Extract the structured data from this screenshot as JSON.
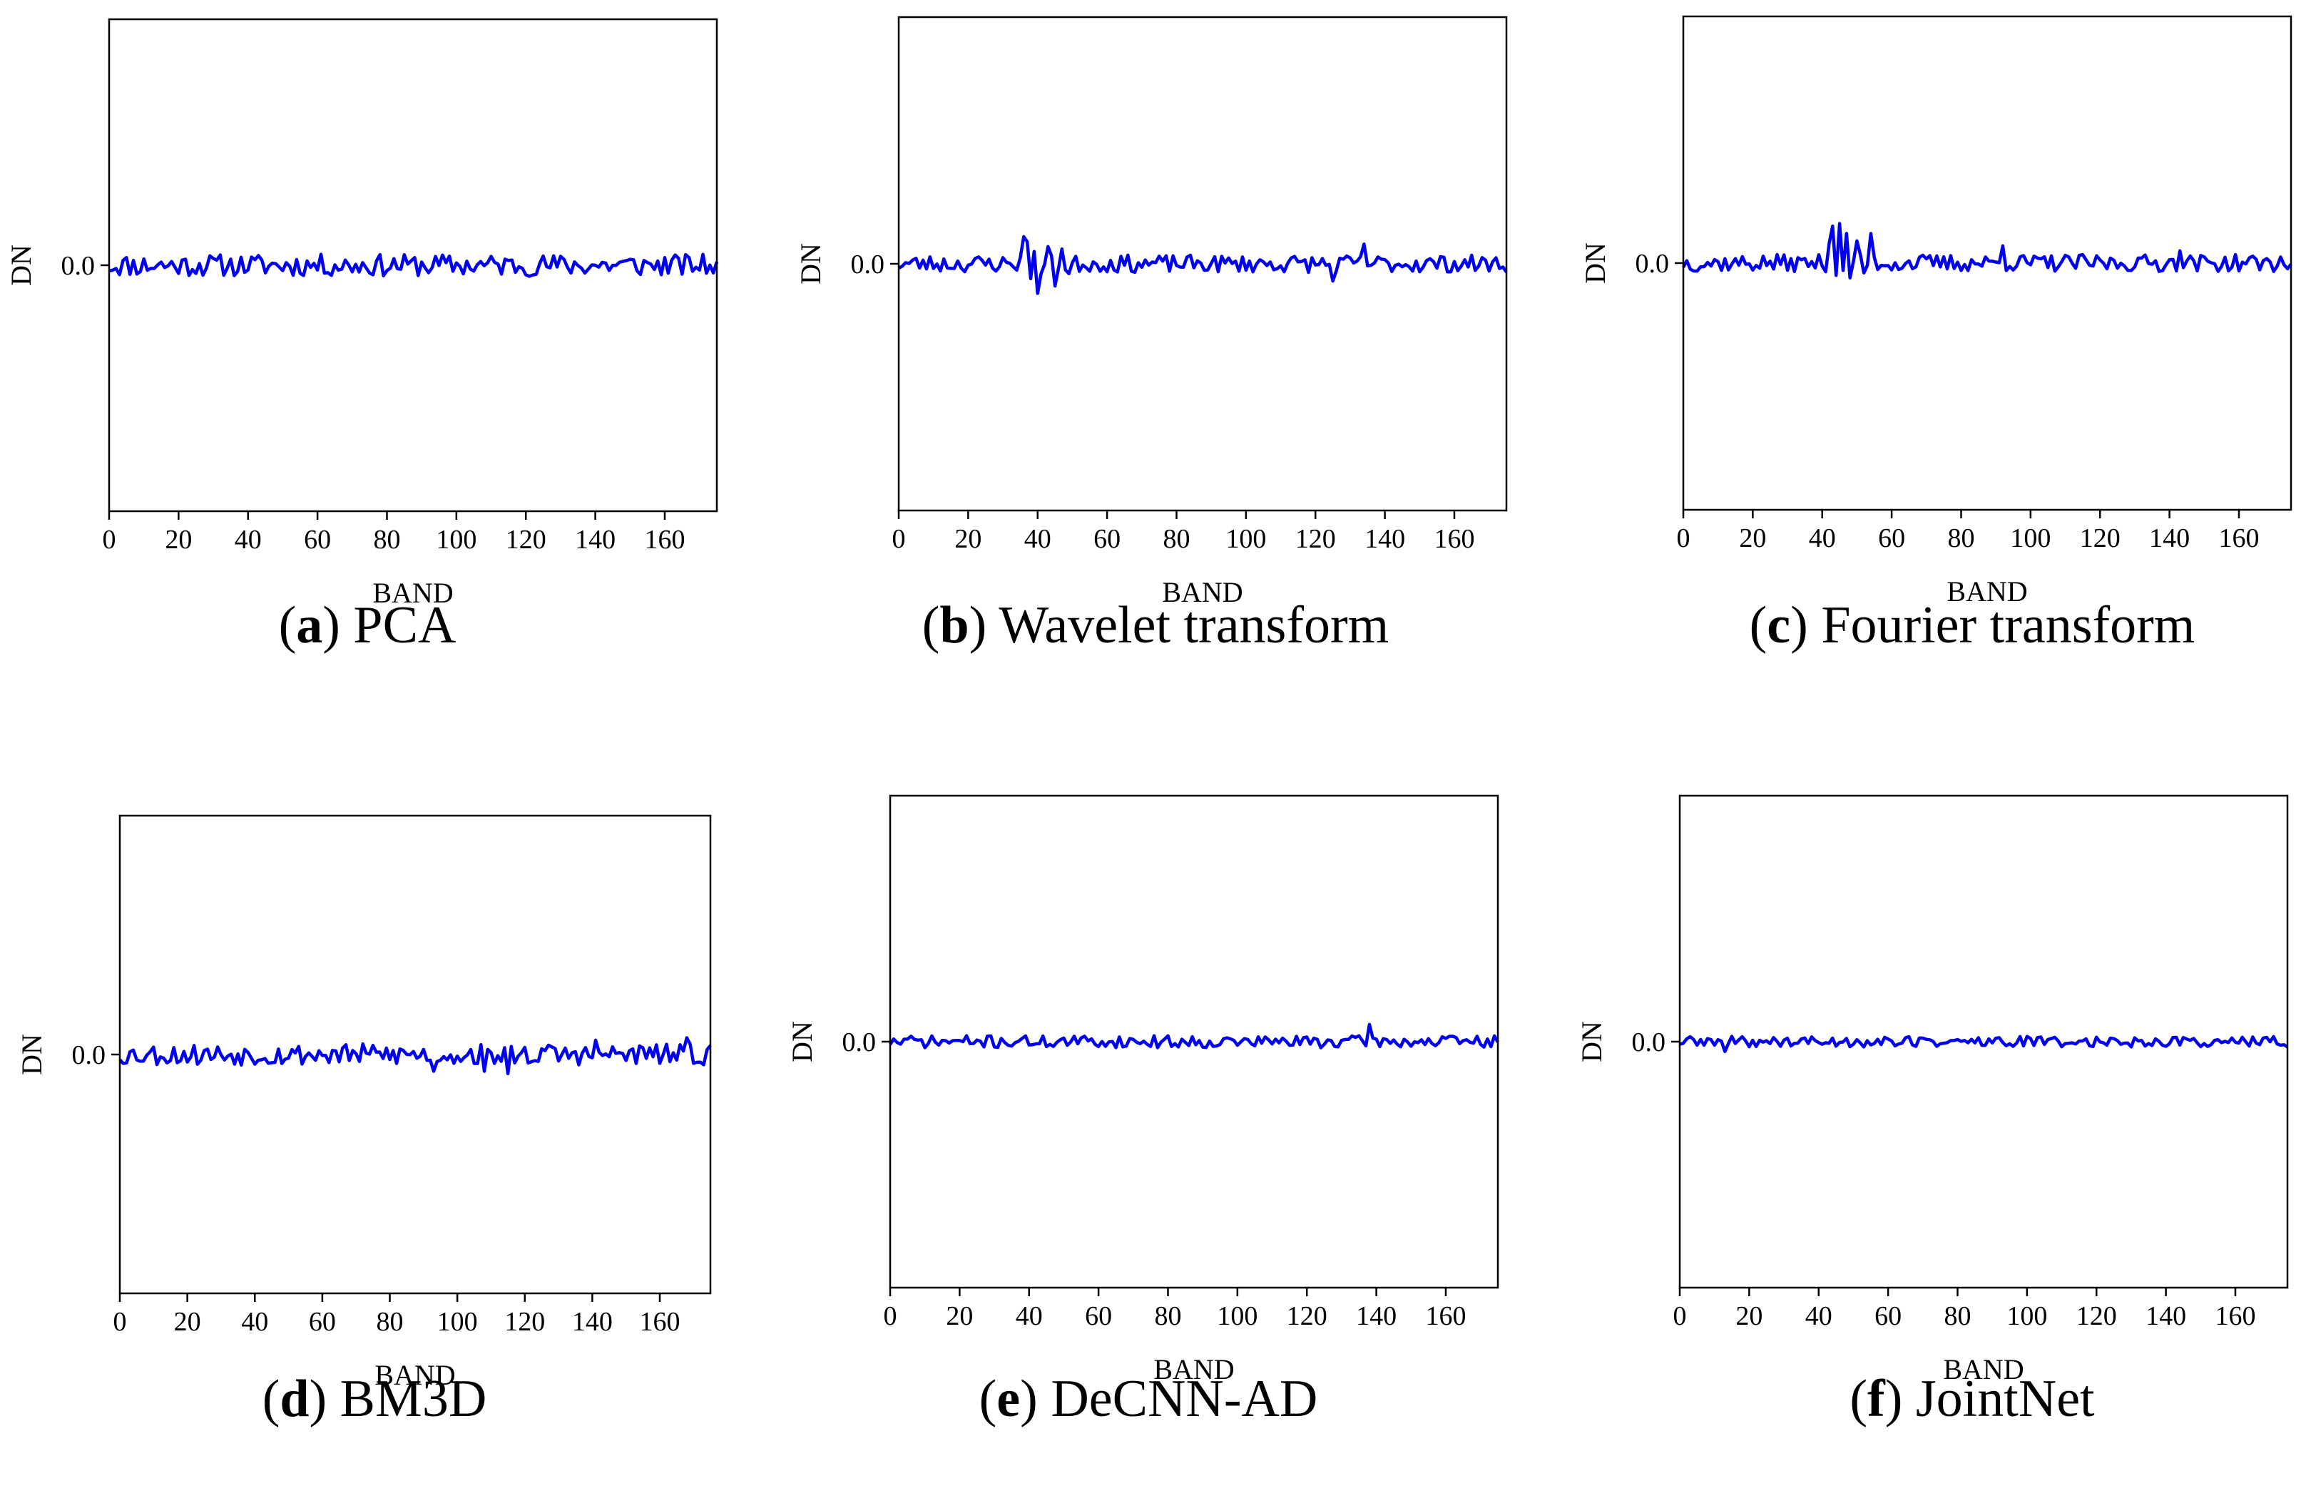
{
  "line_color": "#0000ee",
  "chart_data": [
    {
      "type": "line",
      "letter": "a",
      "caption": "PCA",
      "xlabel": "BAND",
      "ylabel": "DN",
      "xlim": [
        0,
        175
      ],
      "ylim": [
        -1,
        1
      ],
      "xticks": [
        0,
        20,
        40,
        60,
        80,
        100,
        120,
        140,
        160
      ],
      "yticks": [
        0.0
      ],
      "ytick_labels": [
        "0.0"
      ],
      "noise_amplitude": 0.045,
      "spikes": [],
      "seed": 11
    },
    {
      "type": "line",
      "letter": "b",
      "caption": "Wavelet transform",
      "xlabel": "BAND",
      "ylabel": "DN",
      "xlim": [
        0,
        175
      ],
      "ylim": [
        -1,
        1
      ],
      "xticks": [
        0,
        20,
        40,
        60,
        80,
        100,
        120,
        140,
        160
      ],
      "yticks": [
        0.0
      ],
      "ytick_labels": [
        "0.0"
      ],
      "noise_amplitude": 0.035,
      "spikes": [
        [
          36,
          0.11
        ],
        [
          37,
          0.09
        ],
        [
          38,
          -0.06
        ],
        [
          39,
          0.05
        ],
        [
          40,
          -0.12
        ],
        [
          41,
          -0.04
        ],
        [
          43,
          0.07
        ],
        [
          45,
          -0.09
        ],
        [
          47,
          0.06
        ],
        [
          49,
          -0.04
        ],
        [
          125,
          -0.07
        ],
        [
          134,
          0.08
        ]
      ],
      "seed": 23
    },
    {
      "type": "line",
      "letter": "c",
      "caption": "Fourier transform",
      "xlabel": "BAND",
      "ylabel": "DN",
      "xlim": [
        0,
        175
      ],
      "ylim": [
        -1,
        1
      ],
      "xticks": [
        0,
        20,
        40,
        60,
        80,
        100,
        120,
        140,
        160
      ],
      "yticks": [
        0.0
      ],
      "ytick_labels": [
        "0.0"
      ],
      "noise_amplitude": 0.035,
      "spikes": [
        [
          42,
          0.08
        ],
        [
          43,
          0.15
        ],
        [
          44,
          -0.05
        ],
        [
          45,
          0.16
        ],
        [
          46,
          -0.03
        ],
        [
          47,
          0.12
        ],
        [
          48,
          -0.06
        ],
        [
          50,
          0.09
        ],
        [
          52,
          -0.04
        ],
        [
          54,
          0.12
        ],
        [
          92,
          0.07
        ],
        [
          143,
          0.05
        ]
      ],
      "seed": 37
    },
    {
      "type": "line",
      "letter": "d",
      "caption": "BM3D",
      "xlabel": "BAND",
      "ylabel": "DN",
      "xlim": [
        0,
        175
      ],
      "ylim": [
        -1,
        1
      ],
      "xticks": [
        0,
        20,
        40,
        60,
        80,
        100,
        120,
        140,
        160
      ],
      "yticks": [
        0.0
      ],
      "ytick_labels": [
        "0.0"
      ],
      "noise_amplitude": 0.045,
      "spikes": [
        [
          93,
          -0.07
        ],
        [
          108,
          -0.07
        ],
        [
          115,
          -0.08
        ],
        [
          141,
          0.06
        ],
        [
          168,
          0.07
        ]
      ],
      "seed": 53
    },
    {
      "type": "line",
      "letter": "e",
      "caption": "DeCNN-AD",
      "xlabel": "BAND",
      "ylabel": "DN",
      "xlim": [
        0,
        175
      ],
      "ylim": [
        -1,
        1
      ],
      "xticks": [
        0,
        20,
        40,
        60,
        80,
        100,
        120,
        140,
        160
      ],
      "yticks": [
        0.0
      ],
      "ytick_labels": [
        "0.0"
      ],
      "noise_amplitude": 0.025,
      "spikes": [
        [
          138,
          0.07
        ]
      ],
      "seed": 71
    },
    {
      "type": "line",
      "letter": "f",
      "caption": "JointNet",
      "xlabel": "BAND",
      "ylabel": "DN",
      "xlim": [
        0,
        175
      ],
      "ylim": [
        -1,
        1
      ],
      "xticks": [
        0,
        20,
        40,
        60,
        80,
        100,
        120,
        140,
        160
      ],
      "yticks": [
        0.0
      ],
      "ytick_labels": [
        "0.0"
      ],
      "noise_amplitude": 0.022,
      "spikes": [
        [
          13,
          -0.04
        ]
      ],
      "seed": 89
    }
  ]
}
